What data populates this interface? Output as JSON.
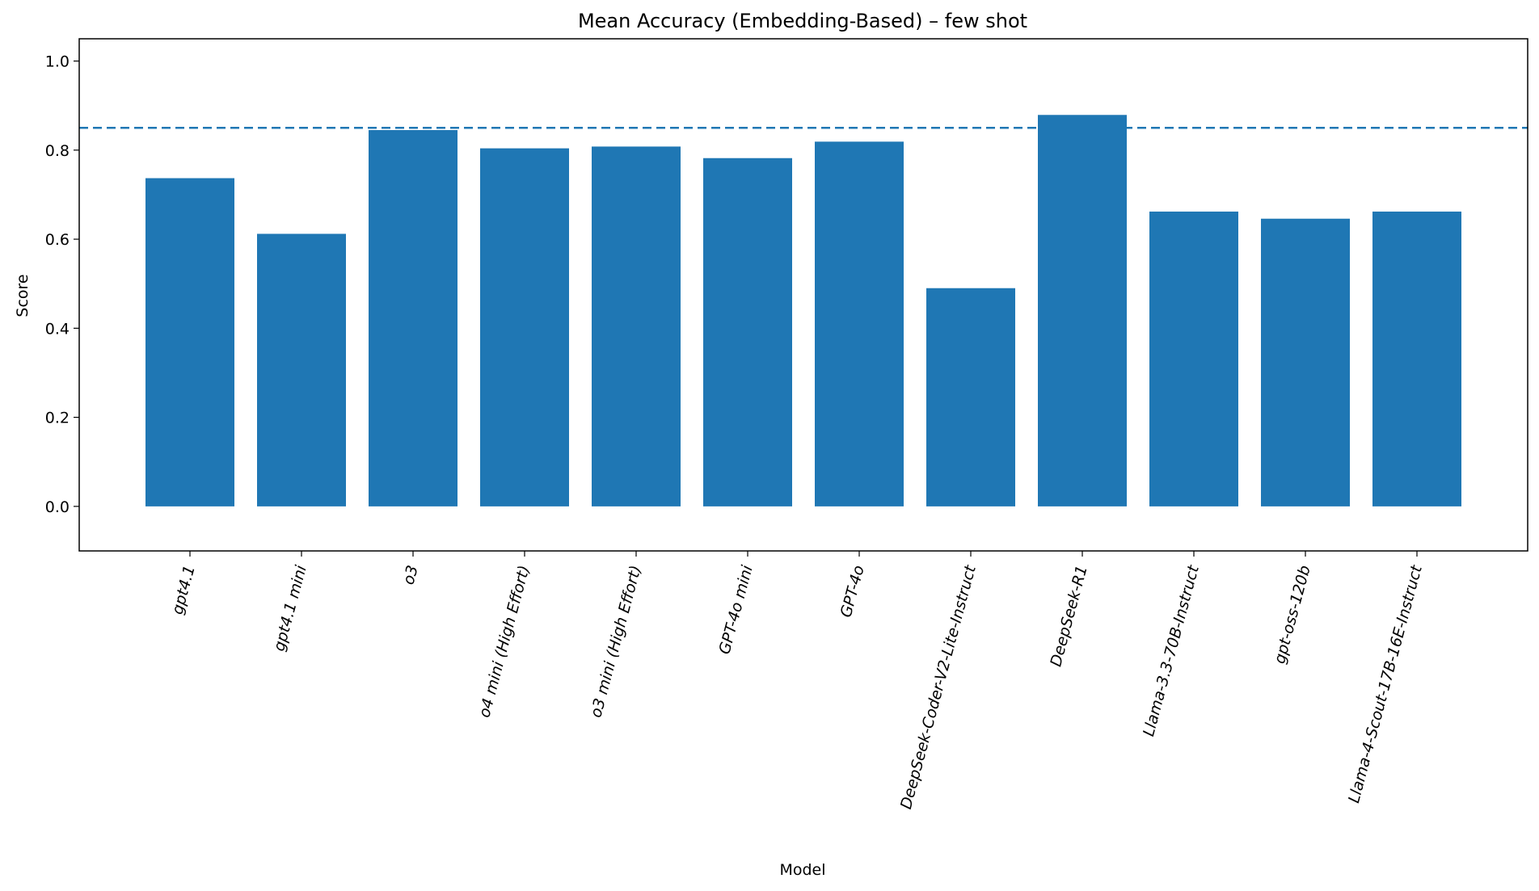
{
  "chart_data": {
    "type": "bar",
    "title": "Mean Accuracy (Embedding-Based) – few shot",
    "xlabel": "Model",
    "ylabel": "Score",
    "ylim": [
      -0.1,
      1.05
    ],
    "yticks": [
      {
        "value": 0.0,
        "label": "0.0"
      },
      {
        "value": 0.2,
        "label": "0.2"
      },
      {
        "value": 0.4,
        "label": "0.4"
      },
      {
        "value": 0.6,
        "label": "0.6"
      },
      {
        "value": 0.8,
        "label": "0.8"
      },
      {
        "value": 1.0,
        "label": "1.0"
      }
    ],
    "categories": [
      "gpt4.1",
      "gpt4.1 mini",
      "o3",
      "o4 mini (High Effort)",
      "o3 mini (High Effort)",
      "GPT-4o mini",
      "GPT-4o",
      "DeepSeek-Coder-V2-Lite-Instruct",
      "DeepSeek-R1",
      "Llama-3.3-70B-Instruct",
      "gpt-oss-120b",
      "Llama-4-Scout-17B-16E-Instruct"
    ],
    "values": [
      0.737,
      0.612,
      0.845,
      0.804,
      0.808,
      0.782,
      0.819,
      0.49,
      0.879,
      0.662,
      0.646,
      0.662
    ],
    "reference_line": 0.85,
    "grid": false,
    "legend": "none",
    "bar_color": "#1f77b4",
    "reference_line_color": "#1f77b4"
  }
}
